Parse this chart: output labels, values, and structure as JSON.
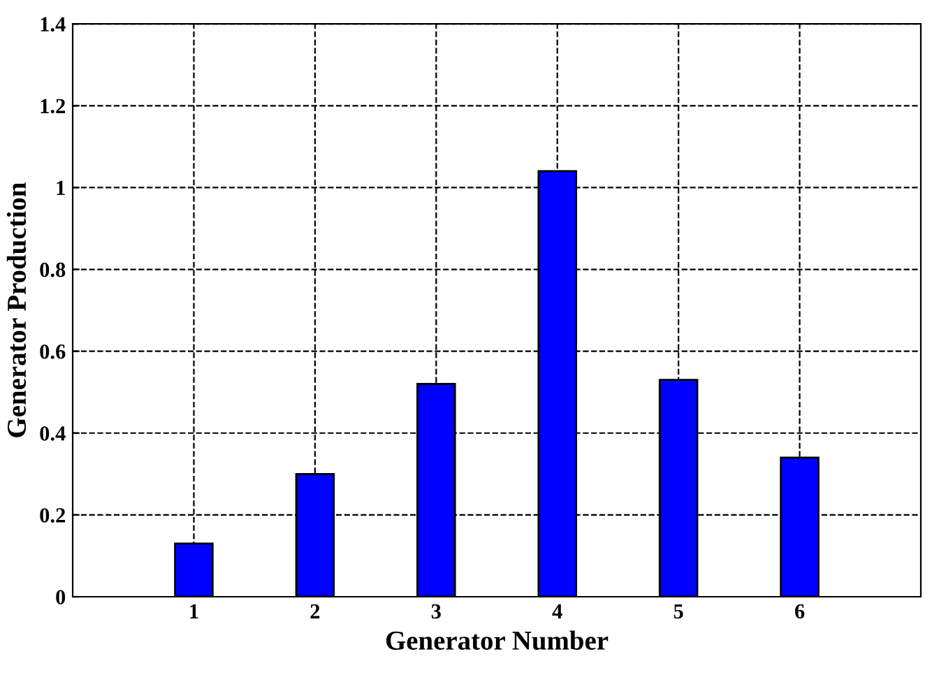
{
  "chart_data": {
    "type": "bar",
    "xlabel": "Generator Number",
    "ylabel": "Generator Production",
    "x": [
      1,
      2,
      3,
      4,
      5,
      6
    ],
    "values": [
      0.13,
      0.3,
      0.52,
      1.04,
      0.53,
      0.34
    ],
    "color": "#0000ff",
    "xlim": [
      0,
      7
    ],
    "xticks": [
      1,
      2,
      3,
      4,
      5,
      6
    ],
    "ylim": [
      0,
      1.4
    ],
    "yticks": [
      0,
      0.2,
      0.4,
      0.6,
      0.8,
      1,
      1.2,
      1.4
    ],
    "grid": true,
    "line_style": "dashed"
  }
}
